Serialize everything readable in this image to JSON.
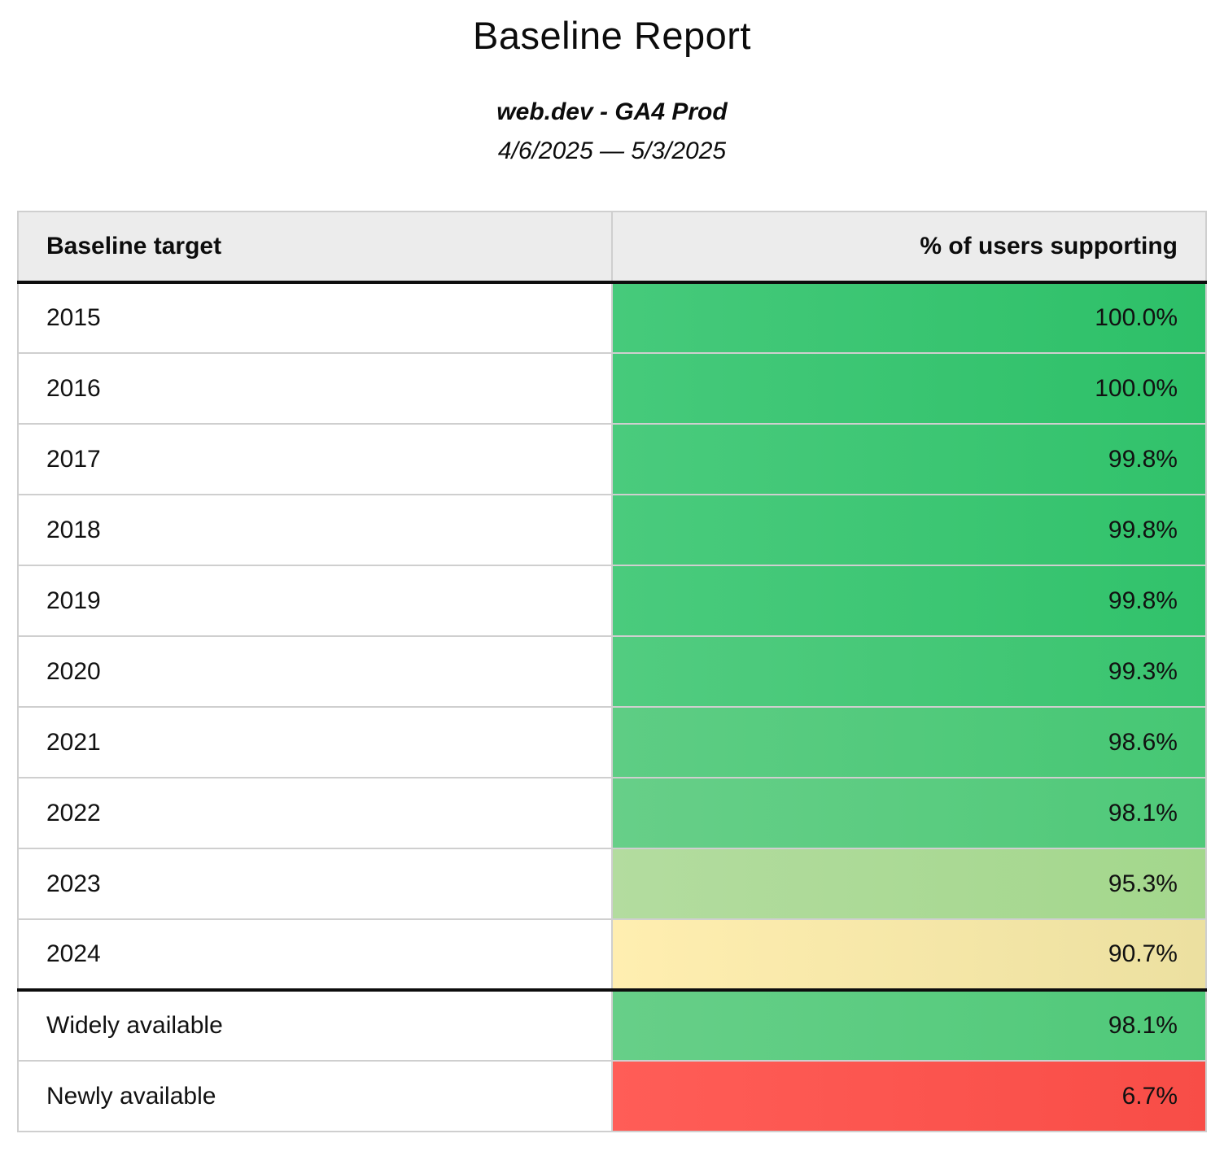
{
  "report": {
    "title": "Baseline Report",
    "subtitle": "web.dev - GA4 Prod",
    "date_range": "4/6/2025 — 5/3/2025"
  },
  "table": {
    "columns": [
      "Baseline target",
      "% of users supporting"
    ],
    "rows": [
      {
        "target": "2015",
        "value": "100.0%",
        "color_left": "#46ca7b",
        "color_right": "#2dc068",
        "separator_above": false
      },
      {
        "target": "2016",
        "value": "100.0%",
        "color_left": "#46ca7b",
        "color_right": "#2dc068",
        "separator_above": false
      },
      {
        "target": "2017",
        "value": "99.8%",
        "color_left": "#4acb7d",
        "color_right": "#31c26b",
        "separator_above": false
      },
      {
        "target": "2018",
        "value": "99.8%",
        "color_left": "#4acb7d",
        "color_right": "#31c26b",
        "separator_above": false
      },
      {
        "target": "2019",
        "value": "99.8%",
        "color_left": "#4acb7d",
        "color_right": "#31c26b",
        "separator_above": false
      },
      {
        "target": "2020",
        "value": "99.3%",
        "color_left": "#52cc80",
        "color_right": "#39c46f",
        "separator_above": false
      },
      {
        "target": "2021",
        "value": "98.6%",
        "color_left": "#5ecd84",
        "color_right": "#46c774",
        "separator_above": false
      },
      {
        "target": "2022",
        "value": "98.1%",
        "color_left": "#67cf88",
        "color_right": "#4fc979",
        "separator_above": false
      },
      {
        "target": "2023",
        "value": "95.3%",
        "color_left": "#b3dc9f",
        "color_right": "#a3d78c",
        "separator_above": false
      },
      {
        "target": "2024",
        "value": "90.7%",
        "color_left": "#ffeeb0",
        "color_right": "#ece0a0",
        "separator_above": false
      },
      {
        "target": "Widely available",
        "value": "98.1%",
        "color_left": "#67cf88",
        "color_right": "#4fc979",
        "separator_above": true
      },
      {
        "target": "Newly available",
        "value": "6.7%",
        "color_left": "#ff5d57",
        "color_right": "#f84d47",
        "separator_above": false
      }
    ]
  },
  "colors": {
    "header_background": "#ececec",
    "grid_border": "#cfcfcf",
    "heavy_border": "#0d0d0d",
    "text": "#0c0c0c"
  },
  "chart_data": {
    "type": "table",
    "title": "Baseline Report",
    "subtitle": "web.dev - GA4 Prod",
    "date_range": "4/6/2025 — 5/3/2025",
    "columns": [
      "Baseline target",
      "% of users supporting"
    ],
    "categories": [
      "2015",
      "2016",
      "2017",
      "2018",
      "2019",
      "2020",
      "2021",
      "2022",
      "2023",
      "2024",
      "Widely available",
      "Newly available"
    ],
    "values": [
      100.0,
      100.0,
      99.8,
      99.8,
      99.8,
      99.3,
      98.6,
      98.1,
      95.3,
      90.7,
      98.1,
      6.7
    ],
    "value_unit": "%",
    "color_scale": "red (low) → yellow (mid) → green (high), cell background encodes % of users supporting"
  }
}
